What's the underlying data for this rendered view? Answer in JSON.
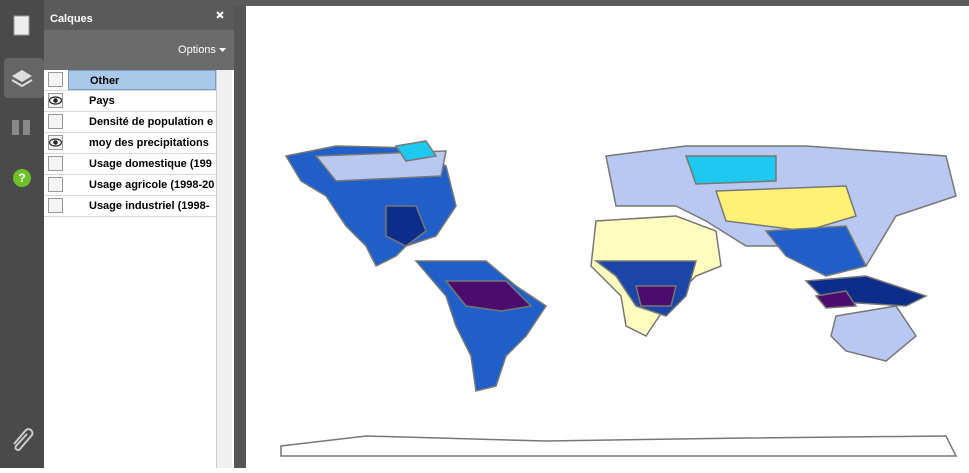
{
  "panel": {
    "title": "Calques",
    "options": "Options",
    "layers": [
      {
        "name": "Other",
        "visible": false,
        "selected": true
      },
      {
        "name": "Pays",
        "visible": true,
        "selected": false
      },
      {
        "name": "Densité de population e",
        "visible": false,
        "selected": false
      },
      {
        "name": "moy des precipitations",
        "visible": true,
        "selected": false
      },
      {
        "name": "Usage domestique (199",
        "visible": false,
        "selected": false
      },
      {
        "name": "Usage agricole (1998-20",
        "visible": false,
        "selected": false
      },
      {
        "name": "Usage industriel (1998-",
        "visible": false,
        "selected": false
      }
    ]
  }
}
